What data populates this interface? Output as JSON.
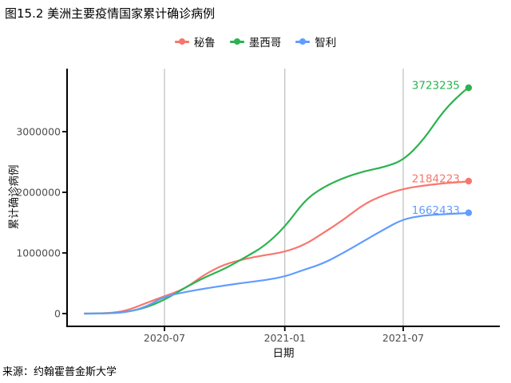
{
  "figure": {
    "title": "图15.2 美洲主要疫情国家累计确诊病例",
    "source_note": "来源：约翰霍普金斯大学"
  },
  "legend": {
    "position": "top",
    "items": [
      {
        "id": "peru",
        "label": "秘鲁",
        "color": "#F8766D"
      },
      {
        "id": "mexico",
        "label": "墨西哥",
        "color": "#2BB34F"
      },
      {
        "id": "chile",
        "label": "智利",
        "color": "#619CFF"
      }
    ]
  },
  "chart_data": {
    "type": "line",
    "title": "图15.2 美洲主要疫情国家累计确诊病例",
    "xlabel": "日期",
    "ylabel": "累计确诊病例",
    "grid": "vertical-major-only",
    "legend_position": "top",
    "x_range": [
      "2020-03-01",
      "2021-10-09"
    ],
    "ylim": [
      0,
      3900000
    ],
    "x_ticks": [
      {
        "label": "2020-07",
        "date": "2020-07-01"
      },
      {
        "label": "2021-01",
        "date": "2021-01-01"
      },
      {
        "label": "2021-07",
        "date": "2021-07-01"
      }
    ],
    "y_ticks": [
      {
        "label": "0",
        "value": 0
      },
      {
        "label": "1000000",
        "value": 1000000
      },
      {
        "label": "2000000",
        "value": 2000000
      },
      {
        "label": "3000000",
        "value": 3000000
      }
    ],
    "dates": [
      "2020-03-01",
      "2020-04-01",
      "2020-05-01",
      "2020-06-01",
      "2020-07-01",
      "2020-08-01",
      "2020-09-01",
      "2020-10-01",
      "2020-11-01",
      "2020-12-01",
      "2021-01-01",
      "2021-02-01",
      "2021-03-01",
      "2021-04-01",
      "2021-05-01",
      "2021-06-01",
      "2021-07-01",
      "2021-08-01",
      "2021-09-01",
      "2021-10-01",
      "2021-10-09"
    ],
    "series": [
      {
        "id": "peru",
        "name": "秘鲁",
        "color": "#F8766D",
        "end_label": "2184223",
        "values": [
          1,
          1065,
          36976,
          164476,
          288477,
          407492,
          652037,
          814829,
          902503,
          962530,
          1017199,
          1138239,
          1329805,
          1548807,
          1799445,
          1955469,
          2057554,
          2112266,
          2149591,
          2171374,
          2184223
        ]
      },
      {
        "id": "mexico",
        "name": "墨西哥",
        "color": "#2BB34F",
        "end_label": "3723235",
        "values": [
          5,
          1378,
          19224,
          90664,
          226089,
          424637,
          599560,
          738163,
          924962,
          1113543,
          1426094,
          1874092,
          2086938,
          2238887,
          2344755,
          2413742,
          2525350,
          2861498,
          3352410,
          3664223,
          3723235
        ]
      },
      {
        "id": "chile",
        "name": "智利",
        "color": "#619CFF",
        "end_label": "1662433",
        "values": [
          1,
          3031,
          16023,
          99688,
          282043,
          355667,
          413145,
          462991,
          510256,
          550430,
          608973,
          729293,
          827593,
          1003406,
          1190991,
          1384346,
          1559218,
          1617829,
          1640056,
          1652775,
          1662433
        ]
      }
    ]
  }
}
